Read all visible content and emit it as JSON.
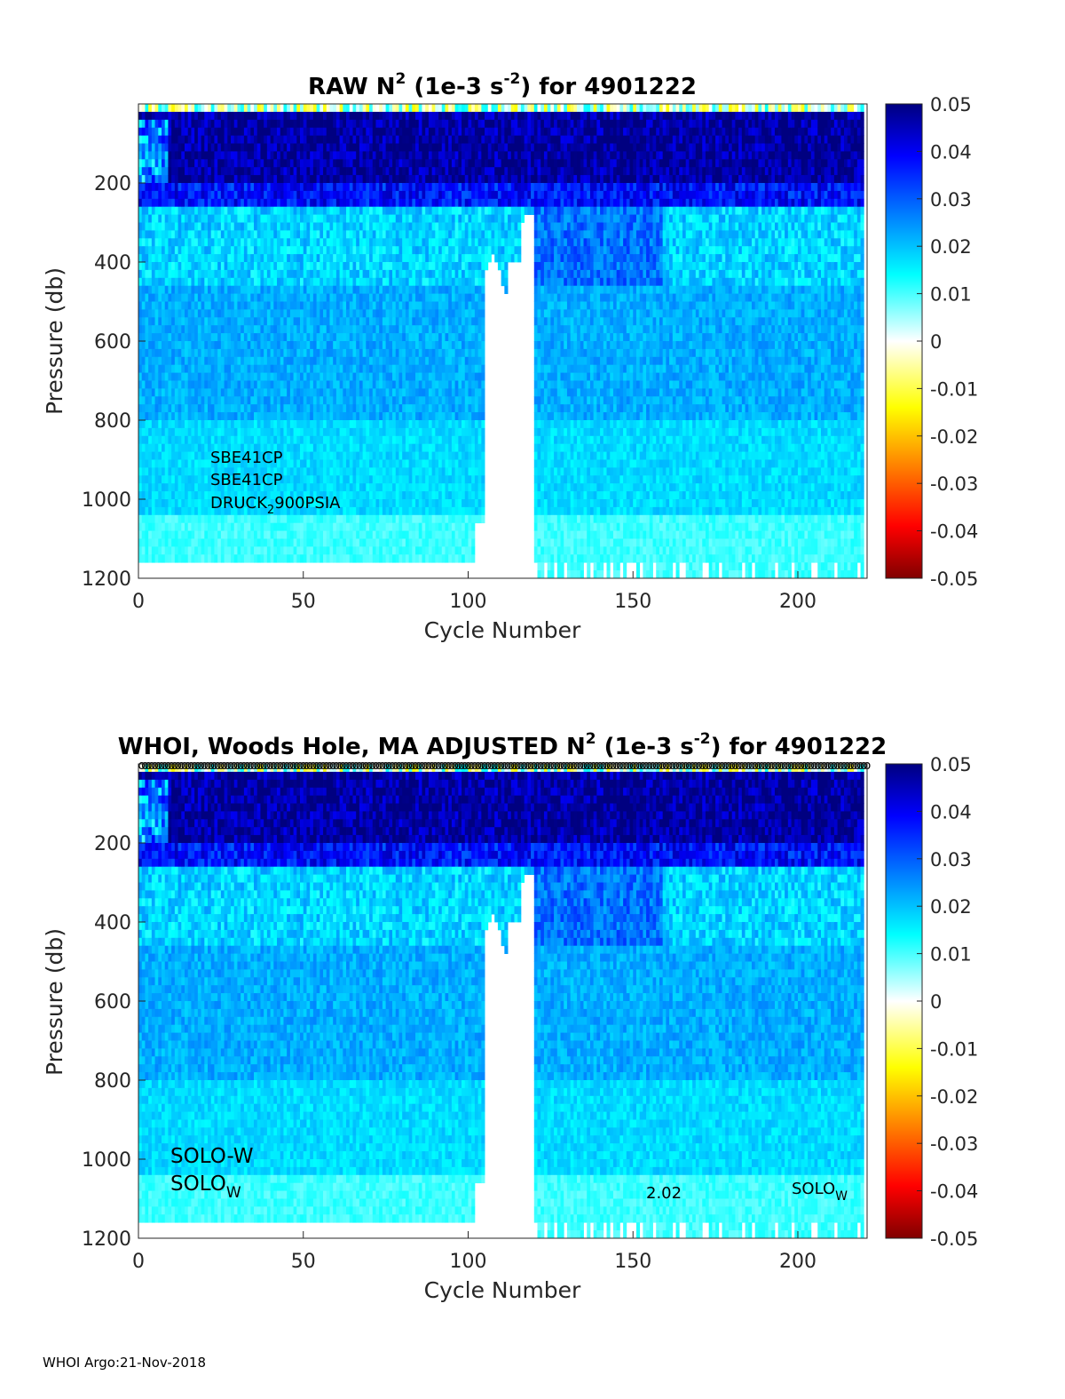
{
  "footer": "WHOI Argo:21-Nov-2018",
  "chart_data": [
    {
      "type": "heatmap",
      "title_parts": [
        "RAW N",
        "2",
        " (1e-3 s",
        "-2",
        ") for 4901222"
      ],
      "xlabel": "Cycle Number",
      "ylabel": "Pressure (db)",
      "xlim": [
        0,
        221
      ],
      "ylim": [
        0,
        1200
      ],
      "y_reversed": true,
      "xticks": [
        0,
        50,
        100,
        150,
        200
      ],
      "yticks": [
        200,
        400,
        600,
        800,
        1000,
        1200
      ],
      "colorbar": {
        "range": [
          -0.05,
          0.05
        ],
        "ticks": [
          "0.05",
          "0.04",
          "0.03",
          "0.02",
          "0.01",
          "0",
          "-0.01",
          "-0.02",
          "-0.03",
          "-0.04",
          "-0.05"
        ],
        "colormap": "jet"
      },
      "annotations": [
        {
          "text": "SBE41CP"
        },
        {
          "text": "SBE41CP"
        },
        {
          "text": "DRUCK",
          "sub": "2",
          "rest": "900PSIA"
        }
      ]
    },
    {
      "type": "heatmap",
      "title_parts": [
        "WHOI, Woods Hole, MA  ADJUSTED N",
        "2",
        " (1e-3 s",
        "-2",
        ") for 4901222"
      ],
      "xlabel": "Cycle Number",
      "ylabel": "Pressure (db)",
      "xlim": [
        0,
        221
      ],
      "ylim": [
        0,
        1200
      ],
      "y_reversed": true,
      "xticks": [
        0,
        50,
        100,
        150,
        200
      ],
      "yticks": [
        200,
        400,
        600,
        800,
        1000,
        1200
      ],
      "colorbar": {
        "range": [
          -0.05,
          0.05
        ],
        "ticks": [
          "0.05",
          "0.04",
          "0.03",
          "0.02",
          "0.01",
          "0",
          "-0.01",
          "-0.02",
          "-0.03",
          "-0.04",
          "-0.05"
        ],
        "colormap": "jet"
      },
      "annotations": [
        {
          "text": "SOLO-W"
        },
        {
          "text": "SOLO",
          "sub": "W"
        },
        {
          "text": "2.02"
        },
        {
          "text": "SOLO",
          "sub": "W"
        }
      ],
      "marker_row": "o"
    }
  ]
}
